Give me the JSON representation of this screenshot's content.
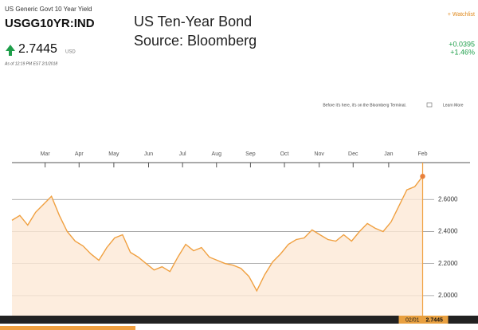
{
  "header": {
    "name": "US Generic Govt 10 Year Yield",
    "ticker": "USGG10YR:IND",
    "price": "2.7445",
    "currency": "USD",
    "as_of": "As of 12:19 PM EST 2/1/2018",
    "watchlist": "+ Watchlist",
    "change": "+0.0395",
    "change_pct": "+1.46%",
    "promo": "Before it's here, it's on the Bloomberg Terminal.",
    "learn_more": "Learn More"
  },
  "chart_data": {
    "type": "line",
    "title": "US Ten-Year Bond",
    "subtitle": "Source: Bloomberg",
    "color": "#f0a040",
    "values": [
      2.47,
      2.5,
      2.44,
      2.52,
      2.57,
      2.62,
      2.5,
      2.4,
      2.34,
      2.31,
      2.26,
      2.22,
      2.3,
      2.36,
      2.38,
      2.27,
      2.24,
      2.2,
      2.16,
      2.18,
      2.15,
      2.24,
      2.32,
      2.28,
      2.3,
      2.24,
      2.22,
      2.2,
      2.19,
      2.17,
      2.12,
      2.03,
      2.13,
      2.21,
      2.26,
      2.32,
      2.35,
      2.36,
      2.41,
      2.38,
      2.35,
      2.34,
      2.38,
      2.34,
      2.4,
      2.45,
      2.42,
      2.4,
      2.46,
      2.56,
      2.66,
      2.68,
      2.7445
    ],
    "xlim": [
      0,
      58
    ],
    "xticks": [
      {
        "value": 4.2,
        "label": "Mar"
      },
      {
        "value": 8.5,
        "label": "Apr"
      },
      {
        "value": 12.9,
        "label": "May"
      },
      {
        "value": 17.3,
        "label": "Jun"
      },
      {
        "value": 21.6,
        "label": "Jul"
      },
      {
        "value": 25.9,
        "label": "Aug"
      },
      {
        "value": 30.2,
        "label": "Sep"
      },
      {
        "value": 34.5,
        "label": "Oct"
      },
      {
        "value": 38.9,
        "label": "Nov"
      },
      {
        "value": 43.2,
        "label": "Dec"
      },
      {
        "value": 47.7,
        "label": "Jan"
      },
      {
        "value": 52,
        "label": "Feb"
      }
    ],
    "ylim": [
      1.875,
      2.83
    ],
    "yticks": [
      {
        "value": 2.0,
        "label": "2.0000"
      },
      {
        "value": 2.2,
        "label": "2.2000"
      },
      {
        "value": 2.4,
        "label": "2.4000"
      },
      {
        "value": 2.6,
        "label": "2.6000"
      }
    ],
    "grid": true,
    "crosshair": {
      "date": "02/01",
      "value_label": "2.7445"
    }
  }
}
